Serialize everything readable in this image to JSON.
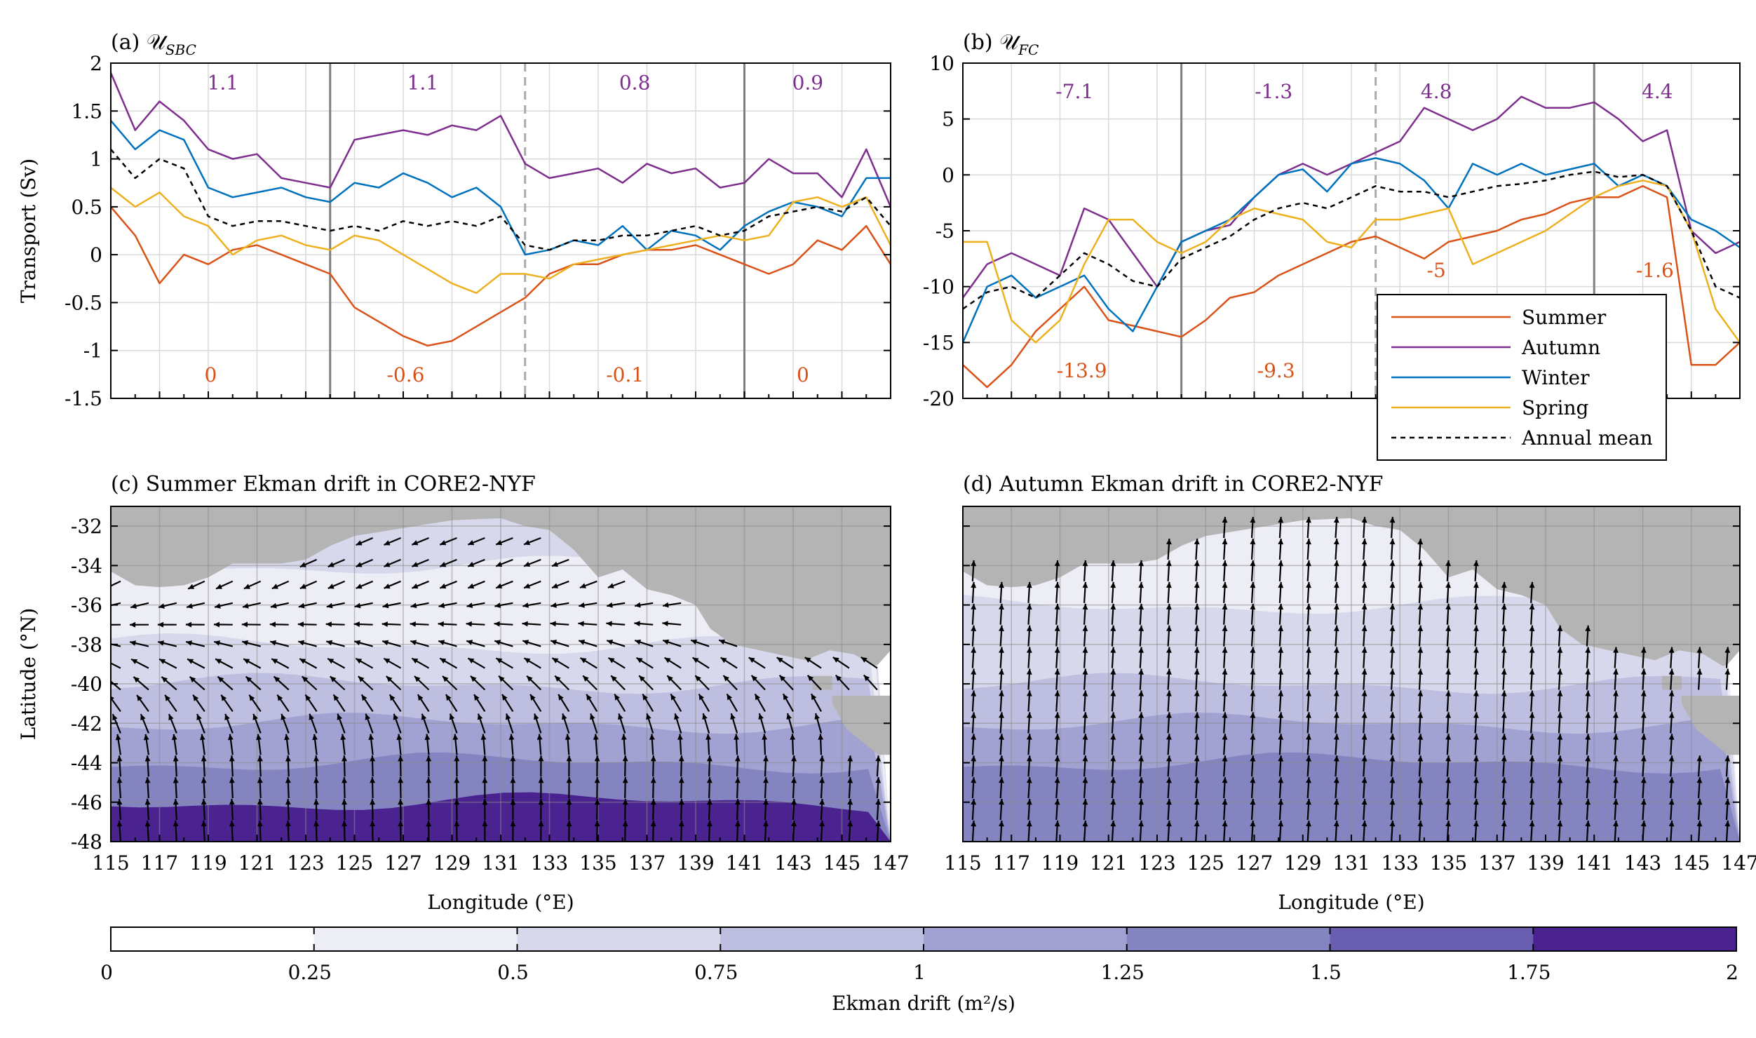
{
  "chart_data": [
    {
      "id": "a",
      "type": "line",
      "title": "(a) 𝒰",
      "title_sub": "SBC",
      "ylabel": "Transport (Sv)",
      "xlim": [
        115,
        147
      ],
      "ylim": [
        -1.5,
        2
      ],
      "yticks": [
        "-1.5",
        "-1",
        "-0.5",
        "0",
        "0.5",
        "1",
        "1.5",
        "2"
      ],
      "grid": true,
      "segment_boundaries": [
        {
          "x": 124,
          "style": "solid"
        },
        {
          "x": 132,
          "style": "dashed"
        },
        {
          "x": 141,
          "style": "solid"
        }
      ],
      "annotations_autumn": [
        {
          "x": 119.6,
          "y": 1.8,
          "text": "1.1"
        },
        {
          "x": 127.8,
          "y": 1.8,
          "text": "1.1"
        },
        {
          "x": 136.5,
          "y": 1.8,
          "text": "0.8"
        },
        {
          "x": 143.6,
          "y": 1.8,
          "text": "0.9"
        }
      ],
      "annotations_summer": [
        {
          "x": 119.1,
          "y": -1.25,
          "text": "0"
        },
        {
          "x": 127.1,
          "y": -1.25,
          "text": "-0.6"
        },
        {
          "x": 136.1,
          "y": -1.25,
          "text": "-0.1"
        },
        {
          "x": 143.4,
          "y": -1.25,
          "text": "0"
        }
      ],
      "series": [
        {
          "key": "summer",
          "color": "#d95319",
          "x": [
            115,
            116,
            117,
            118,
            119,
            120,
            121,
            122,
            123,
            124,
            125,
            126,
            127,
            128,
            129,
            130,
            131,
            132,
            133,
            134,
            135,
            136,
            137,
            138,
            139,
            140,
            141,
            142,
            143,
            144,
            145,
            146,
            147
          ],
          "y": [
            0.5,
            0.2,
            -0.3,
            0.0,
            -0.1,
            0.05,
            0.1,
            0.0,
            -0.1,
            -0.2,
            -0.55,
            -0.7,
            -0.85,
            -0.95,
            -0.9,
            -0.75,
            -0.6,
            -0.45,
            -0.2,
            -0.1,
            -0.1,
            0.0,
            0.05,
            0.05,
            0.1,
            0.0,
            -0.1,
            -0.2,
            -0.1,
            0.15,
            0.05,
            0.3,
            -0.1
          ]
        },
        {
          "key": "autumn",
          "color": "#7e2f8e",
          "x": [
            115,
            116,
            117,
            118,
            119,
            120,
            121,
            122,
            123,
            124,
            125,
            126,
            127,
            128,
            129,
            130,
            131,
            132,
            133,
            134,
            135,
            136,
            137,
            138,
            139,
            140,
            141,
            142,
            143,
            144,
            145,
            146,
            147
          ],
          "y": [
            1.9,
            1.3,
            1.6,
            1.4,
            1.1,
            1.0,
            1.05,
            0.8,
            0.75,
            0.7,
            1.2,
            1.25,
            1.3,
            1.25,
            1.35,
            1.3,
            1.45,
            0.95,
            0.8,
            0.85,
            0.9,
            0.75,
            0.95,
            0.85,
            0.9,
            0.7,
            0.75,
            1.0,
            0.85,
            0.85,
            0.6,
            1.1,
            0.5
          ]
        },
        {
          "key": "winter",
          "color": "#0072bd",
          "x": [
            115,
            116,
            117,
            118,
            119,
            120,
            121,
            122,
            123,
            124,
            125,
            126,
            127,
            128,
            129,
            130,
            131,
            132,
            133,
            134,
            135,
            136,
            137,
            138,
            139,
            140,
            141,
            142,
            143,
            144,
            145,
            146,
            147
          ],
          "y": [
            1.4,
            1.1,
            1.3,
            1.2,
            0.7,
            0.6,
            0.65,
            0.7,
            0.6,
            0.55,
            0.75,
            0.7,
            0.85,
            0.75,
            0.6,
            0.7,
            0.5,
            0.0,
            0.05,
            0.15,
            0.1,
            0.3,
            0.05,
            0.25,
            0.2,
            0.05,
            0.3,
            0.45,
            0.55,
            0.5,
            0.4,
            0.8,
            0.8
          ]
        },
        {
          "key": "spring",
          "color": "#edb120",
          "x": [
            115,
            116,
            117,
            118,
            119,
            120,
            121,
            122,
            123,
            124,
            125,
            126,
            127,
            128,
            129,
            130,
            131,
            132,
            133,
            134,
            135,
            136,
            137,
            138,
            139,
            140,
            141,
            142,
            143,
            144,
            145,
            146,
            147
          ],
          "y": [
            0.7,
            0.5,
            0.65,
            0.4,
            0.3,
            0.0,
            0.15,
            0.2,
            0.1,
            0.05,
            0.2,
            0.15,
            0.0,
            -0.15,
            -0.3,
            -0.4,
            -0.2,
            -0.2,
            -0.25,
            -0.1,
            -0.05,
            0.0,
            0.05,
            0.1,
            0.15,
            0.2,
            0.15,
            0.2,
            0.55,
            0.6,
            0.5,
            0.6,
            0.1
          ]
        },
        {
          "key": "annual",
          "color": "#000000",
          "dashed": true,
          "x": [
            115,
            116,
            117,
            118,
            119,
            120,
            121,
            122,
            123,
            124,
            125,
            126,
            127,
            128,
            129,
            130,
            131,
            132,
            133,
            134,
            135,
            136,
            137,
            138,
            139,
            140,
            141,
            142,
            143,
            144,
            145,
            146,
            147
          ],
          "y": [
            1.1,
            0.8,
            1.0,
            0.9,
            0.4,
            0.3,
            0.35,
            0.35,
            0.3,
            0.25,
            0.3,
            0.25,
            0.35,
            0.3,
            0.35,
            0.3,
            0.4,
            0.1,
            0.05,
            0.15,
            0.15,
            0.2,
            0.2,
            0.25,
            0.3,
            0.2,
            0.25,
            0.4,
            0.45,
            0.5,
            0.45,
            0.6,
            0.3
          ]
        }
      ]
    },
    {
      "id": "b",
      "type": "line",
      "title": "(b) 𝒰",
      "title_sub": "FC",
      "ylabel": "",
      "xlim": [
        115,
        147
      ],
      "ylim": [
        -20,
        10
      ],
      "yticks": [
        "-20",
        "-15",
        "-10",
        "-5",
        "0",
        "5",
        "10"
      ],
      "grid": true,
      "segment_boundaries": [
        {
          "x": 124,
          "style": "solid"
        },
        {
          "x": 132,
          "style": "dashed"
        },
        {
          "x": 141,
          "style": "solid"
        }
      ],
      "annotations_autumn": [
        {
          "x": 119.6,
          "y": 7.5,
          "text": "-7.1"
        },
        {
          "x": 127.8,
          "y": 7.5,
          "text": "-1.3"
        },
        {
          "x": 134.5,
          "y": 7.5,
          "text": "4.8"
        },
        {
          "x": 143.6,
          "y": 7.5,
          "text": "4.4"
        }
      ],
      "annotations_summer": [
        {
          "x": 119.9,
          "y": -17.5,
          "text": "-13.9"
        },
        {
          "x": 127.9,
          "y": -17.5,
          "text": "-9.3"
        },
        {
          "x": 134.5,
          "y": -8.5,
          "text": "-5"
        },
        {
          "x": 143.5,
          "y": -8.5,
          "text": "-1.6"
        }
      ],
      "legend": {
        "position": "lower-right",
        "entries": [
          {
            "label": "Summer",
            "color": "#d95319",
            "dashed": false
          },
          {
            "label": "Autumn",
            "color": "#7e2f8e",
            "dashed": false
          },
          {
            "label": "Winter",
            "color": "#0072bd",
            "dashed": false
          },
          {
            "label": "Spring",
            "color": "#edb120",
            "dashed": false
          },
          {
            "label": "Annual mean",
            "color": "#000000",
            "dashed": true
          }
        ]
      },
      "series": [
        {
          "key": "summer",
          "color": "#d95319",
          "x": [
            115,
            116,
            117,
            118,
            119,
            120,
            121,
            122,
            123,
            124,
            125,
            126,
            127,
            128,
            129,
            130,
            131,
            132,
            133,
            134,
            135,
            136,
            137,
            138,
            139,
            140,
            141,
            142,
            143,
            144,
            145,
            146,
            147
          ],
          "y": [
            -17,
            -19,
            -17,
            -14,
            -12,
            -10,
            -13,
            -13.5,
            -14,
            -14.5,
            -13,
            -11,
            -10.5,
            -9,
            -8,
            -7,
            -6,
            -5.5,
            -6.5,
            -7.5,
            -6,
            -5.5,
            -5,
            -4,
            -3.5,
            -2.5,
            -2,
            -2,
            -1,
            -2,
            -17,
            -17,
            -15
          ]
        },
        {
          "key": "autumn",
          "color": "#7e2f8e",
          "x": [
            115,
            116,
            117,
            118,
            119,
            120,
            121,
            122,
            123,
            124,
            125,
            126,
            127,
            128,
            129,
            130,
            131,
            132,
            133,
            134,
            135,
            136,
            137,
            138,
            139,
            140,
            141,
            142,
            143,
            144,
            145,
            146,
            147
          ],
          "y": [
            -11,
            -8,
            -7,
            -8,
            -9,
            -3,
            -4,
            -7,
            -10,
            -6,
            -5,
            -4.5,
            -2,
            0,
            1,
            0,
            1,
            2,
            3,
            6,
            5,
            4,
            5,
            7,
            6,
            6,
            6.5,
            5,
            3,
            4,
            -5,
            -7,
            -6
          ]
        },
        {
          "key": "winter",
          "color": "#0072bd",
          "x": [
            115,
            116,
            117,
            118,
            119,
            120,
            121,
            122,
            123,
            124,
            125,
            126,
            127,
            128,
            129,
            130,
            131,
            132,
            133,
            134,
            135,
            136,
            137,
            138,
            139,
            140,
            141,
            142,
            143,
            144,
            145,
            146,
            147
          ],
          "y": [
            -15,
            -10,
            -9,
            -11,
            -10,
            -9,
            -12,
            -14,
            -10,
            -6,
            -5,
            -4,
            -2,
            0,
            0.5,
            -1.5,
            1,
            1.5,
            1,
            -0.5,
            -3,
            1,
            0,
            1,
            0,
            0.5,
            1,
            -1,
            0,
            -1,
            -4,
            -5,
            -6.5
          ]
        },
        {
          "key": "spring",
          "color": "#edb120",
          "x": [
            115,
            116,
            117,
            118,
            119,
            120,
            121,
            122,
            123,
            124,
            125,
            126,
            127,
            128,
            129,
            130,
            131,
            132,
            133,
            134,
            135,
            136,
            137,
            138,
            139,
            140,
            141,
            142,
            143,
            144,
            145,
            146,
            147
          ],
          "y": [
            -6,
            -6,
            -13,
            -15,
            -13,
            -8,
            -4,
            -4,
            -6,
            -7,
            -6,
            -4,
            -3,
            -3.5,
            -4,
            -6,
            -6.5,
            -4,
            -4,
            -3.5,
            -3,
            -8,
            -7,
            -6,
            -5,
            -3.5,
            -2,
            -1,
            -0.5,
            -1,
            -5,
            -12,
            -15
          ]
        },
        {
          "key": "annual",
          "color": "#000000",
          "dashed": true,
          "x": [
            115,
            116,
            117,
            118,
            119,
            120,
            121,
            122,
            123,
            124,
            125,
            126,
            127,
            128,
            129,
            130,
            131,
            132,
            133,
            134,
            135,
            136,
            137,
            138,
            139,
            140,
            141,
            142,
            143,
            144,
            145,
            146,
            147
          ],
          "y": [
            -12,
            -10.5,
            -10,
            -11,
            -9,
            -7,
            -8,
            -9.5,
            -10,
            -7.5,
            -6.5,
            -5.5,
            -4,
            -3,
            -2.5,
            -3,
            -2,
            -1,
            -1.5,
            -1.5,
            -2,
            -1.5,
            -1,
            -0.8,
            -0.5,
            0,
            0.3,
            -0.2,
            0,
            -1,
            -5,
            -10,
            -11
          ]
        }
      ]
    },
    {
      "id": "c",
      "type": "heatmap",
      "title": "(c) Summer Ekman drift in CORE2-NYF",
      "xlabel": "Longitude (°E)",
      "ylabel": "Latitude (°N)",
      "xlim": [
        115,
        147
      ],
      "ylim": [
        -48,
        -31
      ],
      "xticks": [
        "115",
        "117",
        "119",
        "121",
        "123",
        "125",
        "127",
        "129",
        "131",
        "133",
        "135",
        "137",
        "139",
        "141",
        "143",
        "145",
        "147"
      ],
      "yticks": [
        "-48",
        "-46",
        "-44",
        "-42",
        "-40",
        "-38",
        "-36",
        "-34",
        "-32"
      ],
      "land_color": "#b4b4b4",
      "field_by_lat": {
        "lat": [
          -48,
          -46,
          -44,
          -42,
          -40,
          -38,
          -36,
          -34
        ],
        "level": [
          7,
          5,
          4,
          3,
          2,
          1,
          1,
          2
        ]
      },
      "vectors": "curved-southward"
    },
    {
      "id": "d",
      "type": "heatmap",
      "title": "(d) Autumn Ekman drift in CORE2-NYF",
      "xlabel": "Longitude (°E)",
      "ylabel": "",
      "xlim": [
        115,
        147
      ],
      "ylim": [
        -48,
        -31
      ],
      "xticks": [
        "115",
        "117",
        "119",
        "121",
        "123",
        "125",
        "127",
        "129",
        "131",
        "133",
        "135",
        "137",
        "139",
        "141",
        "143",
        "145",
        "147"
      ],
      "yticks": [
        "-48",
        "-46",
        "-44",
        "-42",
        "-40",
        "-38",
        "-36",
        "-34",
        "-32"
      ],
      "land_color": "#b4b4b4",
      "field_by_lat": {
        "lat": [
          -48,
          -46,
          -44,
          -42,
          -40,
          -38,
          -36,
          -34
        ],
        "level": [
          5,
          5,
          4,
          3,
          2,
          2,
          1,
          1
        ]
      },
      "vectors": "northward"
    }
  ],
  "colorbar": {
    "label": "Ekman drift (m²/s)",
    "range": [
      0,
      2
    ],
    "ticks": [
      "0",
      "0.25",
      "0.5",
      "0.75",
      "1",
      "1.25",
      "1.5",
      "1.75",
      "2"
    ],
    "colors": [
      "#ffffff",
      "#ededf6",
      "#d8d8ec",
      "#bebee0",
      "#a1a1d2",
      "#8484c1",
      "#6a5eb0",
      "#4b2390"
    ]
  }
}
